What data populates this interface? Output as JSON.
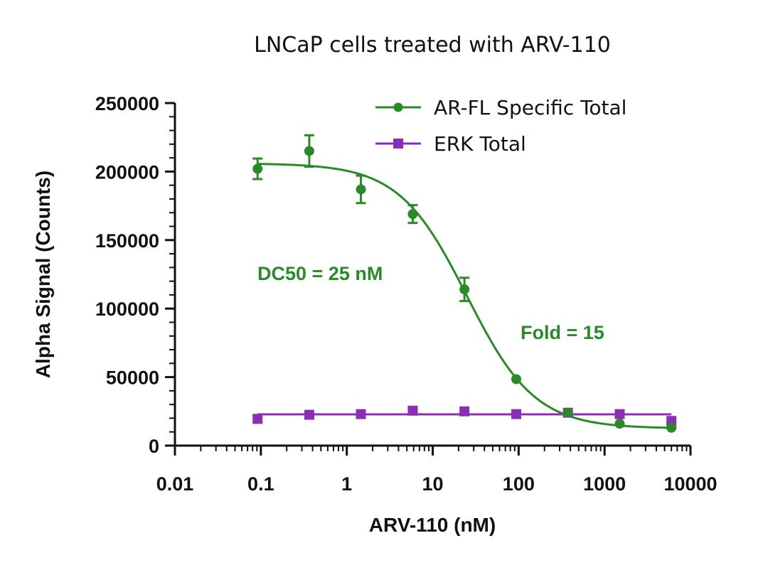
{
  "chart_data": {
    "type": "scatter",
    "title": "LNCaP cells treated with ARV-110",
    "xlabel": "ARV-110 (nM)",
    "ylabel": "Alpha Signal (Counts)",
    "xscale": "log",
    "xlim": [
      0.01,
      10000
    ],
    "ylim": [
      0,
      250000
    ],
    "x_ticks": [
      0.01,
      0.1,
      1,
      10,
      100,
      1000,
      10000
    ],
    "x_tick_labels": [
      "0.01",
      "0.1",
      "1",
      "10",
      "100",
      "1000",
      "10000"
    ],
    "y_ticks": [
      0,
      50000,
      100000,
      150000,
      200000,
      250000
    ],
    "y_tick_labels": [
      "0",
      "50000",
      "100000",
      "150000",
      "200000",
      "250000"
    ],
    "legend_position": "top-right",
    "series": [
      {
        "name": "AR-FL Specific Total",
        "color": "#2a8a2a",
        "marker": "circle",
        "x": [
          0.0916,
          0.366,
          1.46,
          5.86,
          23.4,
          93.8,
          375,
          1500,
          6000
        ],
        "y": [
          202000,
          215000,
          187000,
          169000,
          114000,
          48500,
          24000,
          16000,
          13000
        ],
        "error": [
          7500,
          11500,
          10000,
          6500,
          8500,
          0,
          0,
          0,
          0
        ],
        "fit": {
          "model": "four-parameter logistic",
          "top": 206000,
          "bottom": 12500,
          "ic50": 25,
          "hill": 1.1
        }
      },
      {
        "name": "ERK Total",
        "color": "#8a2fb3",
        "marker": "square",
        "x": [
          0.0916,
          0.366,
          1.46,
          5.86,
          23.4,
          93.8,
          375,
          1500,
          6000
        ],
        "y": [
          19500,
          22500,
          23000,
          25500,
          25000,
          23000,
          24000,
          23000,
          18000
        ],
        "error": [
          0,
          0,
          0,
          0,
          0,
          0,
          0,
          0,
          0
        ],
        "fit": {
          "model": "horizontal line",
          "value": 22800
        }
      }
    ],
    "annotations": [
      {
        "text": "DC50 = 25 nM",
        "color": "#2a8a2a"
      },
      {
        "text": "Fold = 15",
        "color": "#2a8a2a"
      }
    ]
  }
}
